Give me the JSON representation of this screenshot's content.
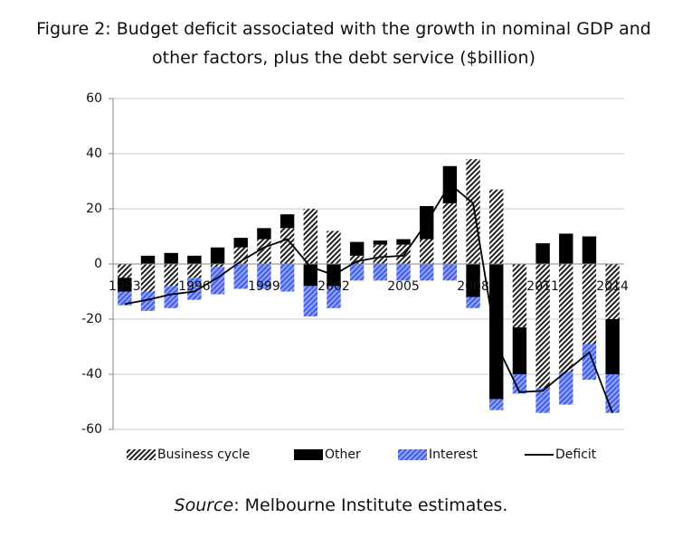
{
  "chart_data": {
    "type": "bar",
    "title": "Figure 2: Budget deficit associated with the growth in nominal GDP and other factors, plus the debt service ($billion)",
    "categories": [
      "1993",
      null,
      null,
      "1996",
      null,
      null,
      "1999",
      null,
      null,
      "2002",
      null,
      null,
      "2005",
      null,
      null,
      "2008",
      null,
      null,
      "2011",
      null,
      null,
      "2014"
    ],
    "series": [
      {
        "name": "Business cycle",
        "color": "#222222",
        "pattern": "hatch",
        "values": [
          -5,
          -10,
          -8,
          -5,
          -1,
          6,
          9,
          13,
          20,
          12,
          3,
          7,
          7,
          9,
          22,
          38,
          27,
          -23,
          -45,
          -39,
          -29,
          -20
        ]
      },
      {
        "name": "Other",
        "color": "#000000",
        "pattern": "solid",
        "values": [
          -5,
          3,
          4,
          3,
          6,
          3.5,
          4,
          5,
          -8,
          -8,
          5,
          1.5,
          2,
          12,
          13.5,
          -12,
          -49,
          -17,
          7.5,
          11,
          10,
          -20
        ]
      },
      {
        "name": "Interest",
        "color": "#3d5cf5",
        "pattern": "hatch",
        "values": [
          -5,
          -7,
          -8,
          -8,
          -10,
          -9,
          -9,
          -10,
          -11,
          -8,
          -6,
          -6,
          -6,
          -6,
          -6,
          -4,
          -4,
          -7,
          -9,
          -12,
          -13,
          -14
        ]
      },
      {
        "name": "Deficit",
        "color": "#000000",
        "type": "line",
        "values": [
          -14.5,
          -13,
          -11,
          -10,
          -5,
          1,
          6,
          9,
          -1,
          -4,
          1,
          2.5,
          3,
          15,
          29,
          22,
          -29,
          -46.5,
          -46,
          -39,
          -32,
          -54
        ]
      }
    ],
    "ylim": [
      -60,
      60
    ],
    "yticks": [
      -60,
      -40,
      -20,
      0,
      20,
      40,
      60
    ],
    "grid": true,
    "source_label": "Source",
    "source_text": ": Melbourne Institute estimates."
  }
}
